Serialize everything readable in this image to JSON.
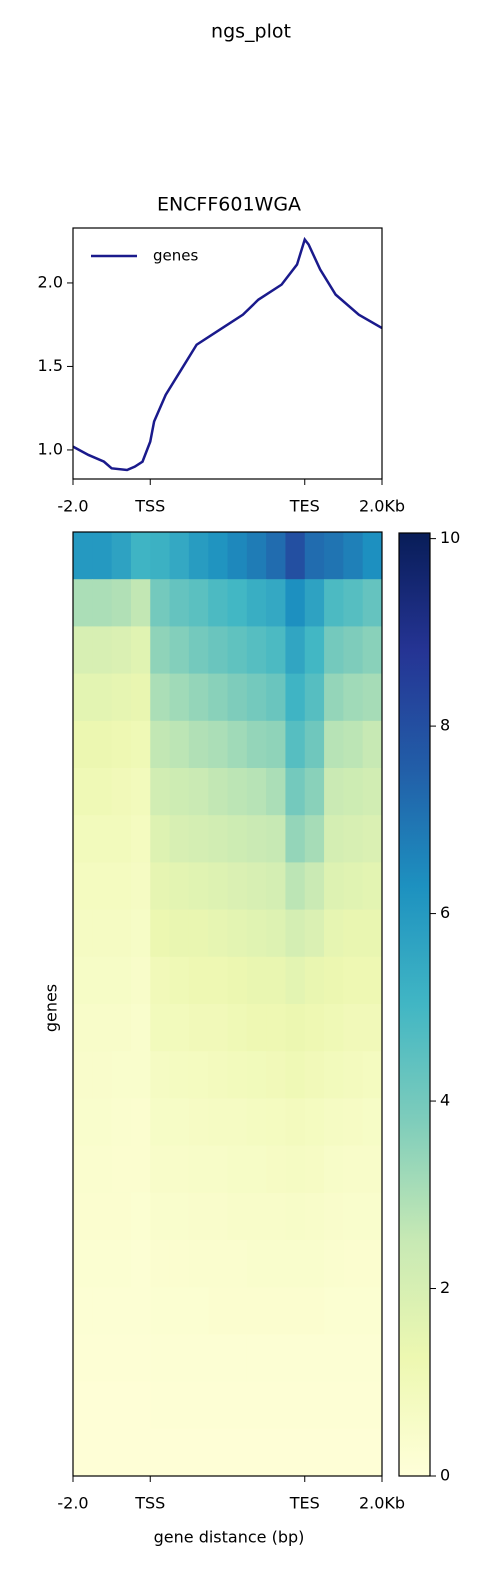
{
  "title": "ngs_plot",
  "chart_data": [
    {
      "type": "line",
      "title": "ENCFF601WGA",
      "legend": "upper left",
      "x": [
        0,
        400,
        800,
        1000,
        1400,
        1600,
        1800,
        2000,
        2100,
        2400,
        2800,
        3200,
        3800,
        4400,
        4800,
        5400,
        5800,
        6000,
        6100,
        6400,
        6800,
        7400,
        8000
      ],
      "series": [
        {
          "name": "genes",
          "color": "#1a1a8c",
          "values": [
            1.02,
            0.97,
            0.93,
            0.89,
            0.88,
            0.9,
            0.93,
            1.05,
            1.17,
            1.33,
            1.48,
            1.63,
            1.72,
            1.81,
            1.9,
            1.99,
            2.11,
            2.26,
            2.23,
            2.08,
            1.93,
            1.81,
            1.73
          ]
        }
      ],
      "xlim": [
        0,
        8000
      ],
      "xticks": [
        {
          "value": 0,
          "label": "-2.0"
        },
        {
          "value": 2000,
          "label": "TSS"
        },
        {
          "value": 6000,
          "label": "TES"
        },
        {
          "value": 8000,
          "label": "2.0Kb"
        }
      ],
      "ylim": [
        0.826,
        2.329
      ],
      "yticks": [
        {
          "value": 1.0,
          "label": "1.0"
        },
        {
          "value": 1.5,
          "label": "1.5"
        },
        {
          "value": 2.0,
          "label": "2.0"
        }
      ]
    },
    {
      "type": "heatmap",
      "colormap": "YlGnBu",
      "ylabel": "genes",
      "xlabel": "gene distance (bp)",
      "xlim": [
        0,
        8000
      ],
      "xticks": [
        {
          "value": 0,
          "label": "-2.0"
        },
        {
          "value": 2000,
          "label": "TSS"
        },
        {
          "value": 6000,
          "label": "TES"
        },
        {
          "value": 8000,
          "label": "2.0Kb"
        }
      ],
      "zlim": [
        0,
        10.06
      ],
      "zticks": [
        0,
        2,
        4,
        6,
        8,
        10
      ],
      "z": [
        [
          6,
          6,
          5.7,
          5.1,
          5.2,
          5.5,
          5.9,
          6.2,
          6.5,
          6.8,
          7.2,
          8,
          7.2,
          7,
          6.7,
          6.3
        ],
        [
          3,
          3,
          2.9,
          2.6,
          4,
          4.3,
          4.5,
          4.8,
          5,
          5.3,
          5.5,
          6.3,
          5.7,
          4.8,
          4.6,
          4.3
        ],
        [
          2,
          2,
          1.9,
          1.7,
          3.5,
          3.7,
          4,
          4.2,
          4.4,
          4.6,
          4.8,
          5.6,
          5,
          4,
          3.8,
          3.6
        ],
        [
          1.6,
          1.6,
          1.5,
          1.4,
          3,
          3.2,
          3.4,
          3.6,
          3.8,
          4,
          4.2,
          5.1,
          4.6,
          3.4,
          3.2,
          3.1
        ],
        [
          1.3,
          1.3,
          1.2,
          1.1,
          2.6,
          2.7,
          2.9,
          3,
          3.2,
          3.4,
          3.5,
          4.6,
          4.1,
          2.8,
          2.7,
          2.5
        ],
        [
          1.1,
          1.1,
          1,
          0.9,
          2.2,
          2.3,
          2.4,
          2.6,
          2.7,
          2.8,
          3,
          4,
          3.6,
          2.4,
          2.3,
          2.2
        ],
        [
          0.9,
          0.9,
          0.9,
          0.8,
          1.8,
          2,
          2.1,
          2.2,
          2.3,
          2.4,
          2.5,
          3.4,
          3.1,
          2.1,
          2,
          1.9
        ],
        [
          0.8,
          0.8,
          0.8,
          0.7,
          1.5,
          1.6,
          1.7,
          1.8,
          1.9,
          2,
          2.1,
          2.7,
          2.4,
          1.8,
          1.7,
          1.6
        ],
        [
          0.7,
          0.7,
          0.7,
          0.6,
          1.3,
          1.4,
          1.4,
          1.5,
          1.6,
          1.7,
          1.8,
          2.1,
          1.9,
          1.5,
          1.4,
          1.4
        ],
        [
          0.6,
          0.6,
          0.6,
          0.5,
          1,
          1.1,
          1.2,
          1.2,
          1.3,
          1.4,
          1.4,
          1.6,
          1.4,
          1.3,
          1.2,
          1.2
        ],
        [
          0.5,
          0.5,
          0.5,
          0.4,
          0.9,
          0.9,
          1,
          1,
          1.1,
          1.2,
          1.2,
          1.3,
          1.2,
          1.1,
          1,
          1
        ],
        [
          0.45,
          0.45,
          0.4,
          0.4,
          0.7,
          0.75,
          0.8,
          0.85,
          0.9,
          0.95,
          1,
          1.1,
          1,
          0.9,
          0.85,
          0.8
        ],
        [
          0.4,
          0.4,
          0.35,
          0.3,
          0.6,
          0.6,
          0.65,
          0.7,
          0.7,
          0.75,
          0.8,
          0.85,
          0.8,
          0.7,
          0.65,
          0.6
        ],
        [
          0.35,
          0.35,
          0.3,
          0.3,
          0.5,
          0.5,
          0.55,
          0.55,
          0.6,
          0.6,
          0.65,
          0.7,
          0.65,
          0.55,
          0.5,
          0.5
        ],
        [
          0.3,
          0.3,
          0.3,
          0.25,
          0.4,
          0.4,
          0.45,
          0.45,
          0.5,
          0.5,
          0.5,
          0.55,
          0.5,
          0.45,
          0.4,
          0.4
        ],
        [
          0.25,
          0.25,
          0.25,
          0.2,
          0.3,
          0.3,
          0.35,
          0.35,
          0.35,
          0.4,
          0.4,
          0.4,
          0.4,
          0.35,
          0.3,
          0.3
        ],
        [
          0.2,
          0.2,
          0.2,
          0.2,
          0.25,
          0.25,
          0.25,
          0.3,
          0.3,
          0.3,
          0.3,
          0.3,
          0.3,
          0.25,
          0.25,
          0.25
        ],
        [
          0.15,
          0.15,
          0.15,
          0.15,
          0.2,
          0.2,
          0.2,
          0.2,
          0.2,
          0.2,
          0.2,
          0.2,
          0.2,
          0.2,
          0.2,
          0.2
        ],
        [
          0.1,
          0.1,
          0.1,
          0.1,
          0.15,
          0.15,
          0.15,
          0.15,
          0.15,
          0.15,
          0.15,
          0.15,
          0.15,
          0.15,
          0.15,
          0.15
        ],
        [
          0.1,
          0.1,
          0.1,
          0.1,
          0.1,
          0.1,
          0.1,
          0.1,
          0.1,
          0.1,
          0.1,
          0.1,
          0.1,
          0.1,
          0.1,
          0.1
        ]
      ]
    }
  ]
}
